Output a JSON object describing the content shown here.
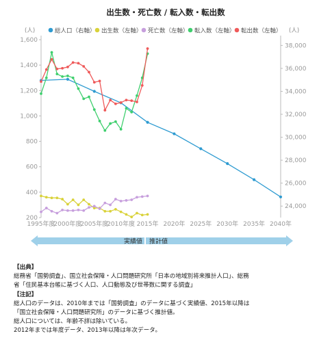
{
  "chart_data": {
    "type": "line",
    "title": "出生数・死亡数 / 転入数・転出数",
    "left_unit": "(人)",
    "right_unit": "(人)",
    "left_ylim": [
      200,
      1600
    ],
    "left_ticks": [
      "200",
      "400",
      "600",
      "800",
      "1,000",
      "1,200",
      "1,400",
      "1,600"
    ],
    "right_ylim": [
      23000,
      38500
    ],
    "right_ticks": [
      "24,000",
      "26,000",
      "28,000",
      "30,000",
      "32,000",
      "34,000",
      "36,000",
      "38,000"
    ],
    "x_ticks": [
      {
        "x": 1995,
        "label": "1995年度"
      },
      {
        "x": 2000,
        "label": "2000年度"
      },
      {
        "x": 2005,
        "label": "2005年度"
      },
      {
        "x": 2010,
        "label": "2010年度"
      },
      {
        "x": 2015,
        "label": "2015年"
      },
      {
        "x": 2020,
        "label": "2020年"
      },
      {
        "x": 2025,
        "label": "2025年"
      },
      {
        "x": 2030,
        "label": "2030年"
      },
      {
        "x": 2035,
        "label": "2035年"
      },
      {
        "x": 2040,
        "label": "2040年"
      }
    ],
    "xlim": [
      1995,
      2040
    ],
    "legend": [
      {
        "name": "総人口（右軸）",
        "color": "#2e9bd1"
      },
      {
        "name": "出生数（左軸）",
        "color": "#d9d23a"
      },
      {
        "name": "死亡数（左軸）",
        "color": "#c79fdd"
      },
      {
        "name": "転入数（左軸）",
        "color": "#3fcf6e"
      },
      {
        "name": "転出数（左軸）",
        "color": "#ef5a5a"
      }
    ],
    "series": [
      {
        "name": "総人口（右軸）",
        "axis": "right",
        "color": "#2e9bd1",
        "x": [
          1995,
          2000,
          2005,
          2010,
          2015,
          2020,
          2025,
          2030,
          2035,
          2040
        ],
        "values": [
          34950,
          35050,
          34000,
          33000,
          31300,
          30300,
          29000,
          27700,
          26300,
          24800
        ]
      },
      {
        "name": "出生数（左軸）",
        "axis": "left",
        "color": "#d9d23a",
        "x": [
          1995,
          1996,
          1997,
          1998,
          1999,
          2000,
          2001,
          2002,
          2003,
          2004,
          2005,
          2006,
          2007,
          2008,
          2009,
          2010,
          2011,
          2012,
          2013,
          2014,
          2015
        ],
        "values": [
          370,
          360,
          355,
          355,
          345,
          305,
          340,
          300,
          340,
          305,
          275,
          275,
          250,
          250,
          265,
          245,
          225,
          205,
          235,
          220,
          225
        ]
      },
      {
        "name": "死亡数（左軸）",
        "axis": "left",
        "color": "#c79fdd",
        "x": [
          1995,
          1996,
          1997,
          1998,
          1999,
          2000,
          2001,
          2002,
          2003,
          2004,
          2005,
          2006,
          2007,
          2008,
          2009,
          2010,
          2011,
          2012,
          2013,
          2014,
          2015
        ],
        "values": [
          245,
          275,
          250,
          235,
          260,
          255,
          255,
          260,
          255,
          280,
          290,
          270,
          315,
          300,
          345,
          330,
          335,
          340,
          360,
          365,
          370
        ]
      },
      {
        "name": "転入数（左軸）",
        "axis": "left",
        "color": "#3fcf6e",
        "x": [
          1995,
          1996,
          1997,
          1998,
          1999,
          2000,
          2001,
          2002,
          2003,
          2004,
          2005,
          2006,
          2007,
          2008,
          2009,
          2010,
          2011,
          2012,
          2013,
          2014,
          2015
        ],
        "values": [
          1175,
          1300,
          1500,
          1330,
          1310,
          1315,
          1300,
          1215,
          1135,
          1150,
          1050,
          960,
          885,
          940,
          955,
          895,
          1060,
          1030,
          1160,
          1300,
          1490
        ]
      },
      {
        "name": "転出数（左軸）",
        "axis": "left",
        "color": "#ef5a5a",
        "x": [
          1995,
          1996,
          1997,
          1998,
          1999,
          2000,
          2001,
          2002,
          2003,
          2004,
          2005,
          2006,
          2007,
          2008,
          2009,
          2010,
          2011,
          2012,
          2013,
          2014,
          2015
        ],
        "values": [
          1270,
          1365,
          1445,
          1370,
          1375,
          1385,
          1420,
          1415,
          1390,
          1345,
          1265,
          1275,
          1045,
          1125,
          1095,
          1105,
          1125,
          1120,
          1110,
          1240,
          1530
        ]
      }
    ],
    "bands": {
      "actual_label": "実績値",
      "projected_label": "推計値"
    }
  },
  "notes": {
    "source_head": "【出典】",
    "source_lines": [
      "総務省「国勢調査」、国立社会保障・人口問題研究所「日本の地域別将来推計人口」、総務",
      "省「住民基本台帳に基づく人口、人口動態及び世帯数に関する調査」"
    ],
    "notes_head": "【注記】",
    "notes_lines": [
      "総人口のデータは、2010年までは「国勢調査」のデータに基づく実績値、2015年以降は",
      "「国立社会保障・人口問題研究所」のデータに基づく推計値。",
      "総人口については、年齢不詳は除いている。",
      "2012年までは年度データ、2013年以降は年次データ。"
    ]
  }
}
